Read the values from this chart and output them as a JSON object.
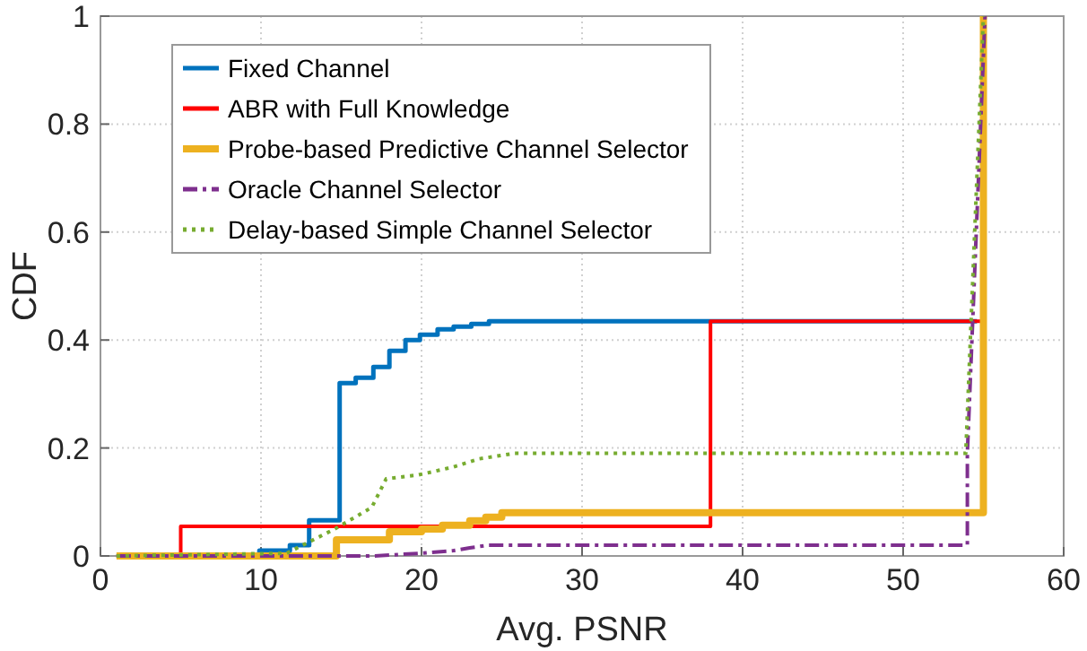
{
  "chart_data": {
    "type": "line",
    "xlabel": "Avg. PSNR",
    "ylabel": "CDF",
    "xlim": [
      0,
      60
    ],
    "ylim": [
      0,
      1
    ],
    "xticks": [
      0,
      10,
      20,
      30,
      40,
      50,
      60
    ],
    "yticks": [
      0,
      0.2,
      0.4,
      0.6,
      0.8,
      1
    ],
    "grid": true,
    "legend": "top left",
    "marker": "none",
    "series": [
      {
        "name": "Fixed Channel",
        "color": "#0072bd",
        "line_style": "solid",
        "x": [
          1,
          9.9,
          9.9,
          11.8,
          11.8,
          13,
          13,
          14.9,
          14.9,
          15.9,
          15.9,
          17,
          17,
          18,
          18,
          19,
          19,
          19.9,
          19.9,
          21,
          21,
          22,
          22,
          23.1,
          23.1,
          24.2,
          24.2,
          54.6
        ],
        "values": [
          0,
          0,
          0.01,
          0.01,
          0.02,
          0.02,
          0.066,
          0.066,
          0.32,
          0.32,
          0.33,
          0.33,
          0.35,
          0.35,
          0.38,
          0.38,
          0.4,
          0.4,
          0.41,
          0.41,
          0.42,
          0.42,
          0.425,
          0.425,
          0.43,
          0.43,
          0.435,
          0.435
        ]
      },
      {
        "name": "ABR with Full Knowledge",
        "color": "#ff0000",
        "line_style": "solid",
        "x": [
          1,
          5,
          5,
          38,
          38,
          55,
          55
        ],
        "values": [
          0,
          0,
          0.055,
          0.055,
          0.435,
          0.435,
          1
        ]
      },
      {
        "name": "Probe-based Predictive Channel Selector",
        "color": "#edb120",
        "line_style": "solid",
        "x": [
          1,
          14.7,
          14.7,
          18,
          18,
          20,
          20,
          21.3,
          21.3,
          23,
          23,
          24,
          24,
          25,
          25,
          55,
          55
        ],
        "values": [
          0,
          0,
          0.03,
          0.03,
          0.045,
          0.045,
          0.05,
          0.05,
          0.057,
          0.057,
          0.065,
          0.065,
          0.072,
          0.072,
          0.08,
          0.08,
          1
        ]
      },
      {
        "name": "Oracle Channel Selector",
        "color": "#7e2f8e",
        "line_style": "dashdot",
        "x": [
          1,
          17,
          20,
          22,
          23,
          24.2,
          54,
          54,
          55.1
        ],
        "values": [
          0,
          0,
          0.005,
          0.01,
          0.015,
          0.02,
          0.02,
          0.19,
          1
        ]
      },
      {
        "name": "Delay-based Simple Channel Selector",
        "color": "#77ac30",
        "line_style": "dotted",
        "x": [
          1,
          11.6,
          14.6,
          16.9,
          17.8,
          19.8,
          22,
          23.6,
          25.8,
          30,
          53.9,
          55
        ],
        "values": [
          0,
          0.005,
          0.05,
          0.09,
          0.143,
          0.15,
          0.165,
          0.18,
          0.19,
          0.19,
          0.19,
          1
        ]
      }
    ]
  }
}
